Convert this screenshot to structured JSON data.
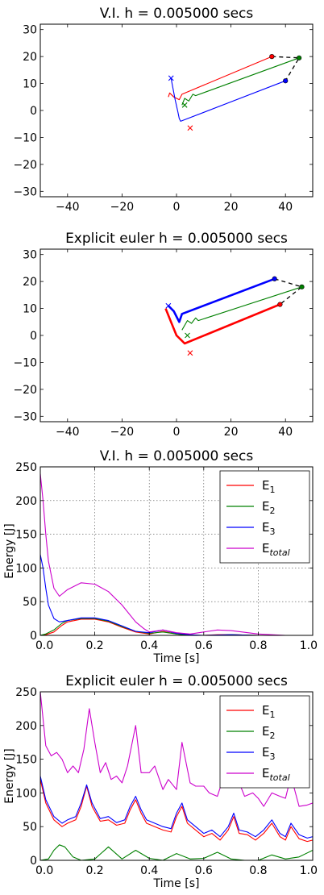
{
  "chart_data": [
    {
      "type": "line",
      "title": "V.I. h = 0.005000 secs",
      "xlabel": "",
      "ylabel": "",
      "xlim": [
        -50,
        50
      ],
      "ylim": [
        -32,
        32
      ],
      "xticks": [
        -40,
        -20,
        0,
        20,
        40
      ],
      "yticks": [
        -30,
        -20,
        -10,
        0,
        10,
        20,
        30
      ],
      "grid": false,
      "series": [
        {
          "color": "#ff0000",
          "x": [
            -3,
            -2.5,
            -1,
            1,
            2,
            35
          ],
          "y": [
            5,
            6.5,
            5,
            4,
            6,
            20
          ]
        },
        {
          "color": "#008000",
          "x": [
            2,
            3,
            4.5,
            6,
            7,
            45
          ],
          "y": [
            2,
            4.5,
            3.5,
            6,
            5.5,
            19.5
          ]
        },
        {
          "color": "#0000ff",
          "x": [
            -2,
            -0.5,
            0.5,
            1,
            1.5,
            40
          ],
          "y": [
            12,
            4,
            -0.5,
            -3,
            -4,
            11
          ]
        },
        {
          "color": "#000000",
          "dashed": true,
          "x": [
            35,
            45,
            40
          ],
          "y": [
            20,
            19.5,
            11
          ]
        }
      ],
      "markers": [
        {
          "color": "#ff0000",
          "shape": "x",
          "x": 5,
          "y": -6.5
        },
        {
          "color": "#008000",
          "shape": "x",
          "x": 3,
          "y": 2
        },
        {
          "color": "#0000ff",
          "shape": "x",
          "x": -2,
          "y": 12
        },
        {
          "color": "#ff0000",
          "shape": "dot",
          "x": 35,
          "y": 20
        },
        {
          "color": "#008000",
          "shape": "dot",
          "x": 45,
          "y": 19.5
        },
        {
          "color": "#0000ff",
          "shape": "dot",
          "x": 40,
          "y": 11
        }
      ]
    },
    {
      "type": "line",
      "title": "Explicit euler h = 0.005000 secs",
      "xlabel": "",
      "ylabel": "",
      "xlim": [
        -50,
        50
      ],
      "ylim": [
        -32,
        32
      ],
      "xticks": [
        -40,
        -20,
        0,
        20,
        40
      ],
      "yticks": [
        -30,
        -20,
        -10,
        0,
        10,
        20,
        30
      ],
      "grid": false,
      "series": [
        {
          "color": "#ff0000",
          "x": [
            -4,
            -2,
            0,
            2,
            3,
            38
          ],
          "y": [
            10,
            5,
            0,
            -2,
            -3,
            11.5
          ]
        },
        {
          "color": "#008000",
          "x": [
            2,
            4,
            5.5,
            7,
            8,
            46
          ],
          "y": [
            2,
            5.5,
            4.5,
            6.5,
            5.5,
            18
          ]
        },
        {
          "color": "#0000ff",
          "x": [
            -3,
            -1,
            0,
            1,
            2,
            36
          ],
          "y": [
            11,
            9,
            7,
            5,
            8,
            21
          ]
        },
        {
          "color": "#000000",
          "dashed": true,
          "x": [
            36,
            46,
            38
          ],
          "y": [
            21,
            18,
            11.5
          ]
        }
      ],
      "markers": [
        {
          "color": "#ff0000",
          "shape": "x",
          "x": 5,
          "y": -6.5
        },
        {
          "color": "#008000",
          "shape": "x",
          "x": 4,
          "y": 0
        },
        {
          "color": "#0000ff",
          "shape": "x",
          "x": -3,
          "y": 11
        },
        {
          "color": "#ff0000",
          "shape": "dot",
          "x": 38,
          "y": 11.5
        },
        {
          "color": "#008000",
          "shape": "dot",
          "x": 46,
          "y": 18
        },
        {
          "color": "#0000ff",
          "shape": "dot",
          "x": 36,
          "y": 21
        }
      ]
    },
    {
      "type": "line",
      "title": "V.I. h = 0.005000 secs",
      "xlabel": "Time [s]",
      "ylabel": "Energy [J]",
      "xlim": [
        0,
        1
      ],
      "ylim": [
        0,
        250
      ],
      "xticks": [
        0.0,
        0.2,
        0.4,
        0.6,
        0.8,
        1.0
      ],
      "yticks": [
        0,
        50,
        100,
        150,
        200,
        250
      ],
      "grid": true,
      "legend": "top-right",
      "series": [
        {
          "name": "E_1",
          "color": "#ff0000",
          "x": [
            0,
            0.02,
            0.05,
            0.08,
            0.1,
            0.15,
            0.2,
            0.25,
            0.3,
            0.35,
            0.4,
            0.45,
            0.5,
            0.55,
            0.6,
            0.65,
            0.7,
            0.8,
            0.9,
            1.0
          ],
          "y": [
            0,
            1,
            5,
            15,
            20,
            24,
            24,
            20,
            12,
            5,
            2,
            6,
            2,
            0,
            0,
            1,
            1,
            0,
            0,
            0
          ]
        },
        {
          "name": "E_2",
          "color": "#008000",
          "x": [
            0,
            0.02,
            0.05,
            0.08,
            0.1,
            0.15,
            0.2,
            0.25,
            0.3,
            0.35,
            0.4,
            0.45,
            0.5,
            0.55,
            0.6,
            0.65,
            0.7,
            0.8,
            0.9,
            1.0
          ],
          "y": [
            0,
            2,
            8,
            18,
            22,
            25,
            25,
            21,
            13,
            6,
            3,
            5,
            2,
            0,
            0,
            0,
            1,
            0,
            0,
            0
          ]
        },
        {
          "name": "E_3",
          "color": "#0000ff",
          "x": [
            0,
            0.01,
            0.02,
            0.03,
            0.05,
            0.07,
            0.1,
            0.15,
            0.2,
            0.25,
            0.3,
            0.35,
            0.4,
            0.45,
            0.5,
            0.55,
            0.6,
            0.7,
            0.8,
            1.0
          ],
          "y": [
            120,
            100,
            70,
            45,
            25,
            20,
            22,
            26,
            26,
            22,
            14,
            6,
            4,
            8,
            3,
            1,
            0,
            1,
            0,
            0
          ]
        },
        {
          "name": "E_total",
          "color": "#cc00cc",
          "x": [
            0,
            0.01,
            0.02,
            0.03,
            0.05,
            0.07,
            0.1,
            0.15,
            0.2,
            0.25,
            0.3,
            0.35,
            0.38,
            0.4,
            0.45,
            0.5,
            0.55,
            0.6,
            0.65,
            0.7,
            0.8,
            0.9,
            1.0
          ],
          "y": [
            240,
            200,
            150,
            110,
            70,
            58,
            68,
            78,
            76,
            65,
            45,
            20,
            10,
            5,
            8,
            4,
            2,
            5,
            8,
            7,
            2,
            0,
            0
          ]
        }
      ],
      "legend_entries": [
        {
          "base": "E",
          "sub": "1",
          "color": "#ff0000"
        },
        {
          "base": "E",
          "sub": "2",
          "color": "#008000"
        },
        {
          "base": "E",
          "sub": "3",
          "color": "#0000ff"
        },
        {
          "base": "E",
          "sub": "total",
          "color": "#cc00cc"
        }
      ]
    },
    {
      "type": "line",
      "title": "Explicit euler h = 0.005000 secs",
      "xlabel": "Time [s]",
      "ylabel": "Energy [J]",
      "xlim": [
        0,
        1
      ],
      "ylim": [
        0,
        250
      ],
      "xticks": [
        0.0,
        0.2,
        0.4,
        0.6,
        0.8,
        1.0
      ],
      "yticks": [
        0,
        50,
        100,
        150,
        200,
        250
      ],
      "grid": false,
      "legend": "top-right",
      "series": [
        {
          "name": "E_1",
          "color": "#ff0000",
          "x": [
            0,
            0.02,
            0.05,
            0.08,
            0.1,
            0.13,
            0.15,
            0.17,
            0.19,
            0.22,
            0.25,
            0.28,
            0.31,
            0.33,
            0.35,
            0.37,
            0.39,
            0.42,
            0.45,
            0.48,
            0.5,
            0.52,
            0.54,
            0.57,
            0.6,
            0.63,
            0.66,
            0.69,
            0.71,
            0.73,
            0.76,
            0.79,
            0.82,
            0.85,
            0.88,
            0.9,
            0.92,
            0.95,
            0.98,
            1.0
          ],
          "y": [
            120,
            85,
            60,
            50,
            55,
            60,
            80,
            110,
            80,
            58,
            60,
            52,
            55,
            75,
            90,
            70,
            55,
            50,
            45,
            42,
            65,
            80,
            55,
            45,
            35,
            40,
            30,
            45,
            65,
            40,
            38,
            30,
            40,
            55,
            35,
            30,
            50,
            32,
            28,
            30
          ]
        },
        {
          "name": "E_2",
          "color": "#008000",
          "x": [
            0,
            0.03,
            0.05,
            0.07,
            0.09,
            0.12,
            0.15,
            0.2,
            0.25,
            0.3,
            0.35,
            0.4,
            0.45,
            0.5,
            0.55,
            0.6,
            0.65,
            0.7,
            0.75,
            0.8,
            0.85,
            0.9,
            0.95,
            1.0
          ],
          "y": [
            0,
            2,
            15,
            23,
            20,
            5,
            0,
            2,
            20,
            2,
            15,
            3,
            0,
            10,
            2,
            3,
            12,
            2,
            0,
            0,
            8,
            2,
            5,
            15
          ]
        },
        {
          "name": "E_3",
          "color": "#0000ff",
          "x": [
            0,
            0.02,
            0.05,
            0.08,
            0.1,
            0.13,
            0.15,
            0.17,
            0.19,
            0.22,
            0.25,
            0.28,
            0.31,
            0.33,
            0.35,
            0.37,
            0.39,
            0.42,
            0.45,
            0.48,
            0.5,
            0.52,
            0.54,
            0.57,
            0.6,
            0.63,
            0.66,
            0.69,
            0.71,
            0.73,
            0.76,
            0.79,
            0.82,
            0.85,
            0.88,
            0.9,
            0.92,
            0.95,
            0.98,
            1.0
          ],
          "y": [
            125,
            90,
            65,
            55,
            60,
            65,
            85,
            112,
            85,
            62,
            65,
            56,
            60,
            80,
            95,
            75,
            60,
            55,
            50,
            47,
            70,
            85,
            60,
            50,
            40,
            45,
            35,
            50,
            70,
            45,
            42,
            35,
            45,
            60,
            40,
            35,
            55,
            38,
            33,
            35
          ]
        },
        {
          "name": "E_total",
          "color": "#cc00cc",
          "x": [
            0,
            0.01,
            0.02,
            0.04,
            0.06,
            0.08,
            0.1,
            0.12,
            0.14,
            0.16,
            0.18,
            0.2,
            0.22,
            0.24,
            0.26,
            0.28,
            0.3,
            0.32,
            0.35,
            0.37,
            0.4,
            0.42,
            0.45,
            0.47,
            0.5,
            0.52,
            0.55,
            0.57,
            0.6,
            0.62,
            0.65,
            0.67,
            0.7,
            0.72,
            0.75,
            0.78,
            0.8,
            0.82,
            0.85,
            0.88,
            0.9,
            0.92,
            0.95,
            0.98,
            1.0
          ],
          "y": [
            250,
            210,
            170,
            155,
            160,
            150,
            130,
            140,
            130,
            165,
            225,
            175,
            130,
            145,
            120,
            125,
            115,
            140,
            200,
            130,
            130,
            140,
            105,
            120,
            105,
            175,
            115,
            110,
            110,
            100,
            95,
            120,
            110,
            125,
            95,
            100,
            92,
            80,
            100,
            95,
            92,
            125,
            80,
            82,
            85
          ]
        }
      ],
      "legend_entries": [
        {
          "base": "E",
          "sub": "1",
          "color": "#ff0000"
        },
        {
          "base": "E",
          "sub": "2",
          "color": "#008000"
        },
        {
          "base": "E",
          "sub": "3",
          "color": "#0000ff"
        },
        {
          "base": "E",
          "sub": "total",
          "color": "#cc00cc"
        }
      ]
    }
  ]
}
